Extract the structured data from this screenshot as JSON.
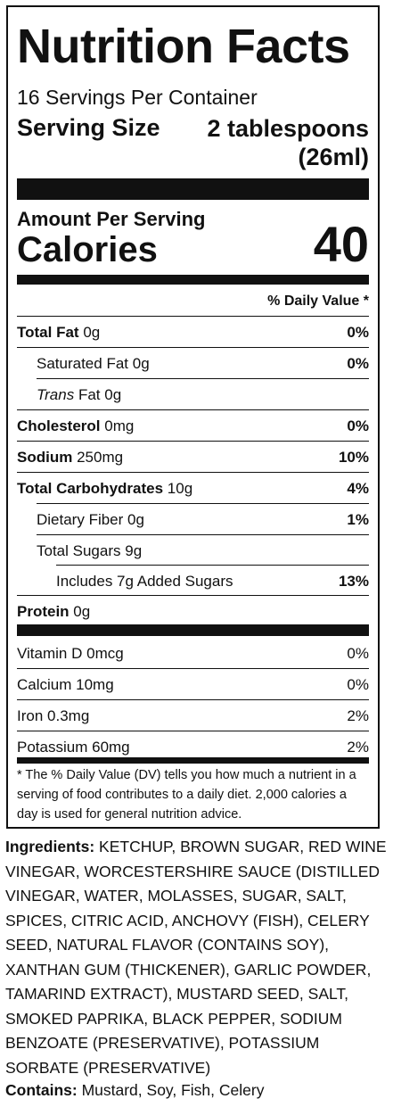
{
  "label": {
    "title": "Nutrition Facts",
    "servings_per_container": "16 Servings Per Container",
    "serving_size_label": "Serving Size",
    "serving_size_value_line1": "2 tablespoons",
    "serving_size_value_line2": "(26ml)",
    "amount_per_serving": "Amount Per Serving",
    "calories_label": "Calories",
    "calories_value": "40",
    "daily_value_header": "% Daily Value *",
    "nutrients": [
      {
        "name": "Total Fat",
        "amount": "0g",
        "dv": "0%"
      },
      {
        "name": "Saturated Fat",
        "amount": "0g",
        "dv": "0%"
      },
      {
        "name": "Trans",
        "name_rest": "Fat",
        "amount": "0g",
        "dv": ""
      },
      {
        "name": "Cholesterol",
        "amount": "0mg",
        "dv": "0%"
      },
      {
        "name": "Sodium",
        "amount": "250mg",
        "dv": "10%"
      },
      {
        "name": "Total Carbohydrates",
        "amount": "10g",
        "dv": "4%"
      },
      {
        "name": "Dietary Fiber",
        "amount": "0g",
        "dv": "1%"
      },
      {
        "name": "Total Sugars",
        "amount": "9g",
        "dv": ""
      },
      {
        "name": "Includes 7g Added Sugars",
        "amount": "",
        "dv": "13%"
      },
      {
        "name": "Protein",
        "amount": "0g",
        "dv": ""
      }
    ],
    "vitamins": [
      {
        "name": "Vitamin D",
        "amount": "0mcg",
        "dv": "0%"
      },
      {
        "name": "Calcium",
        "amount": "10mg",
        "dv": "0%"
      },
      {
        "name": "Iron",
        "amount": "0.3mg",
        "dv": "2%"
      },
      {
        "name": "Potassium",
        "amount": "60mg",
        "dv": "2%"
      }
    ],
    "footnote": "* The % Daily Value (DV) tells you how much a nutrient in a serving of food contributes to a daily diet. 2,000 calories a day is used for general nutrition advice."
  },
  "ingredients": {
    "label": "Ingredients:",
    "text": "KETCHUP, BROWN SUGAR, RED WINE VINEGAR, WORCESTERSHIRE SAUCE (DISTILLED VINEGAR, WATER, MOLASSES, SUGAR, SALT, SPICES, CITRIC ACID, ANCHOVY (FISH), CELERY SEED, NATURAL FLAVOR (CONTAINS SOY), XANTHAN GUM (THICKENER), GARLIC POWDER, TAMARIND EXTRACT), MUSTARD SEED, SALT, SMOKED PAPRIKA, BLACK PEPPER, SODIUM BENZOATE (PRESERVATIVE), POTASSIUM SORBATE (PRESERVATIVE)"
  },
  "contains": {
    "label": "Contains:",
    "text": "Mustard, Soy, Fish, Celery"
  }
}
